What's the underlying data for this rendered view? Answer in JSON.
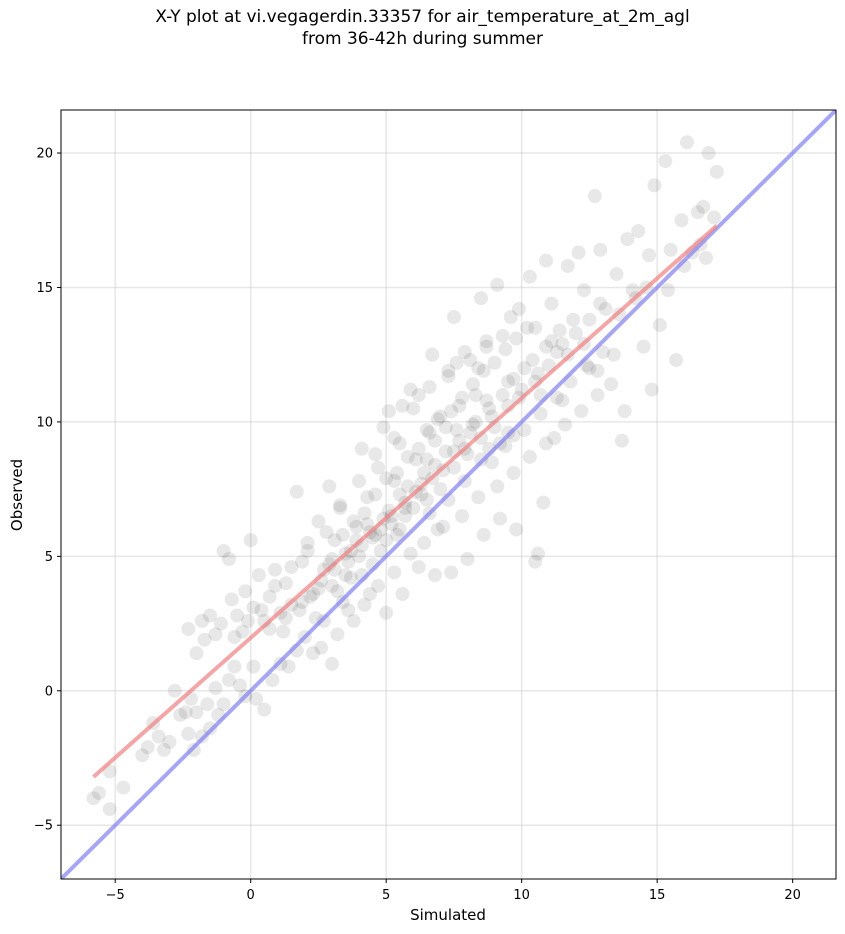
{
  "title_line1": "X-Y plot at vi.vegagerdin.33357 for air_temperature_at_2m_agl",
  "title_line2": "from 36-42h during summer",
  "chart_data": {
    "type": "scatter",
    "xlabel": "Simulated",
    "ylabel": "Observed",
    "xlim": [
      -7,
      21.6
    ],
    "ylim": [
      -7,
      21.6
    ],
    "xticks": [
      -5,
      0,
      5,
      10,
      15,
      20
    ],
    "yticks": [
      -5,
      0,
      5,
      10,
      15,
      20
    ],
    "xtick_labels": [
      "−5",
      "0",
      "5",
      "10",
      "15",
      "20"
    ],
    "ytick_labels": [
      "−5",
      "0",
      "5",
      "10",
      "15",
      "20"
    ],
    "grid": true,
    "point_color": "#000000",
    "point_alpha": 0.09,
    "regression_line": {
      "color": "#f08080",
      "x": [
        -5.8,
        17.2
      ],
      "y": [
        -3.2,
        17.3
      ]
    },
    "identity_line": {
      "color": "#8080f0",
      "x": [
        -7,
        21.6
      ],
      "y": [
        -7,
        21.6
      ]
    },
    "points": [
      [
        -5.8,
        -4.0
      ],
      [
        -5.2,
        -4.4
      ],
      [
        -5.6,
        -3.8
      ],
      [
        -5.2,
        -3.0
      ],
      [
        -4.7,
        -3.6
      ],
      [
        -4.0,
        -2.4
      ],
      [
        -3.8,
        -2.1
      ],
      [
        -3.6,
        -1.2
      ],
      [
        -3.4,
        -1.7
      ],
      [
        -3.2,
        -2.2
      ],
      [
        -3.0,
        -1.9
      ],
      [
        -2.8,
        0.0
      ],
      [
        -2.6,
        -0.9
      ],
      [
        -2.4,
        -0.8
      ],
      [
        -2.3,
        -1.6
      ],
      [
        -2.2,
        -0.3
      ],
      [
        -2.1,
        -2.2
      ],
      [
        -2.0,
        -0.8
      ],
      [
        -1.8,
        -1.7
      ],
      [
        -1.6,
        -0.5
      ],
      [
        -1.5,
        -1.4
      ],
      [
        -1.3,
        0.1
      ],
      [
        -1.2,
        -0.9
      ],
      [
        -1.0,
        -0.5
      ],
      [
        -0.8,
        0.4
      ],
      [
        -0.6,
        0.9
      ],
      [
        -0.4,
        0.2
      ],
      [
        -0.2,
        -0.2
      ],
      [
        0.1,
        0.9
      ],
      [
        0.2,
        -0.3
      ],
      [
        0.5,
        -0.7
      ],
      [
        0.8,
        0.4
      ],
      [
        1.1,
        1.0
      ],
      [
        -2.3,
        2.3
      ],
      [
        -2.0,
        1.4
      ],
      [
        -1.8,
        2.6
      ],
      [
        -1.7,
        1.9
      ],
      [
        -1.5,
        2.8
      ],
      [
        -1.3,
        2.1
      ],
      [
        -1.1,
        2.5
      ],
      [
        -1.0,
        5.2
      ],
      [
        -0.8,
        4.9
      ],
      [
        -0.7,
        3.4
      ],
      [
        -0.5,
        2.8
      ],
      [
        -0.3,
        2.2
      ],
      [
        -0.2,
        3.7
      ],
      [
        0.0,
        5.6
      ],
      [
        0.1,
        3.1
      ],
      [
        0.3,
        4.3
      ],
      [
        0.5,
        2.6
      ],
      [
        0.7,
        3.5
      ],
      [
        0.9,
        4.5
      ],
      [
        1.1,
        2.9
      ],
      [
        1.3,
        4.0
      ],
      [
        1.5,
        3.2
      ],
      [
        1.7,
        7.4
      ],
      [
        1.9,
        4.8
      ],
      [
        2.1,
        5.5
      ],
      [
        2.3,
        3.6
      ],
      [
        2.5,
        6.3
      ],
      [
        2.7,
        4.5
      ],
      [
        2.9,
        7.6
      ],
      [
        3.1,
        5.6
      ],
      [
        3.3,
        6.8
      ],
      [
        3.5,
        5.1
      ],
      [
        3.7,
        4.2
      ],
      [
        3.9,
        6.1
      ],
      [
        4.1,
        9.0
      ],
      [
        4.3,
        7.2
      ],
      [
        4.5,
        5.7
      ],
      [
        4.7,
        8.3
      ],
      [
        4.9,
        6.4
      ],
      [
        5.1,
        10.4
      ],
      [
        5.3,
        7.8
      ],
      [
        5.5,
        9.2
      ],
      [
        5.7,
        6.8
      ],
      [
        5.9,
        11.2
      ],
      [
        6.1,
        8.6
      ],
      [
        6.3,
        7.3
      ],
      [
        6.5,
        9.7
      ],
      [
        6.7,
        12.5
      ],
      [
        6.9,
        10.1
      ],
      [
        7.1,
        8.2
      ],
      [
        7.3,
        11.7
      ],
      [
        7.5,
        13.9
      ],
      [
        7.7,
        10.6
      ],
      [
        7.9,
        9.0
      ],
      [
        8.1,
        12.3
      ],
      [
        8.3,
        11.0
      ],
      [
        8.5,
        14.6
      ],
      [
        8.7,
        12.8
      ],
      [
        8.9,
        10.2
      ],
      [
        9.1,
        15.1
      ],
      [
        9.3,
        13.2
      ],
      [
        9.5,
        11.5
      ],
      [
        9.7,
        9.5
      ],
      [
        9.9,
        14.2
      ],
      [
        10.1,
        12.0
      ],
      [
        10.3,
        15.4
      ],
      [
        10.5,
        13.5
      ],
      [
        10.7,
        11.0
      ],
      [
        10.9,
        16.0
      ],
      [
        11.1,
        14.4
      ],
      [
        11.3,
        12.6
      ],
      [
        11.5,
        10.8
      ],
      [
        11.7,
        15.8
      ],
      [
        11.9,
        13.8
      ],
      [
        12.1,
        16.3
      ],
      [
        12.3,
        14.9
      ],
      [
        12.5,
        12.0
      ],
      [
        12.7,
        18.4
      ],
      [
        12.9,
        16.4
      ],
      [
        13.1,
        14.2
      ],
      [
        13.3,
        11.4
      ],
      [
        13.5,
        15.5
      ],
      [
        13.7,
        9.3
      ],
      [
        13.9,
        16.8
      ],
      [
        14.1,
        14.9
      ],
      [
        14.3,
        17.1
      ],
      [
        14.5,
        12.8
      ],
      [
        14.7,
        16.2
      ],
      [
        14.9,
        18.8
      ],
      [
        15.1,
        13.6
      ],
      [
        15.3,
        19.7
      ],
      [
        15.5,
        16.4
      ],
      [
        15.7,
        12.3
      ],
      [
        15.9,
        17.5
      ],
      [
        16.1,
        20.4
      ],
      [
        16.3,
        16.3
      ],
      [
        16.5,
        17.8
      ],
      [
        16.7,
        18.0
      ],
      [
        16.9,
        20.0
      ],
      [
        17.1,
        17.6
      ],
      [
        17.2,
        19.3
      ],
      [
        16.8,
        16.1
      ],
      [
        14.8,
        11.2
      ],
      [
        13.8,
        10.4
      ],
      [
        12.8,
        11.0
      ],
      [
        11.2,
        9.4
      ],
      [
        10.8,
        7.0
      ],
      [
        10.5,
        4.8
      ],
      [
        10.6,
        5.1
      ],
      [
        9.8,
        6.0
      ],
      [
        9.2,
        6.4
      ],
      [
        8.6,
        5.8
      ],
      [
        8.0,
        4.9
      ],
      [
        7.4,
        4.4
      ],
      [
        6.8,
        4.3
      ],
      [
        6.2,
        4.6
      ],
      [
        5.6,
        3.6
      ],
      [
        5.0,
        2.9
      ],
      [
        4.4,
        3.6
      ],
      [
        3.8,
        2.6
      ],
      [
        3.2,
        2.1
      ],
      [
        2.6,
        1.6
      ],
      [
        2.0,
        2.0
      ],
      [
        1.4,
        0.9
      ],
      [
        3.0,
        1.0
      ],
      [
        2.3,
        1.4
      ],
      [
        1.7,
        1.5
      ],
      [
        3.5,
        4.3
      ],
      [
        4.0,
        5.0
      ],
      [
        4.5,
        4.7
      ],
      [
        5.0,
        5.6
      ],
      [
        5.5,
        6.0
      ],
      [
        6.0,
        6.8
      ],
      [
        6.5,
        7.1
      ],
      [
        7.0,
        7.5
      ],
      [
        7.5,
        8.3
      ],
      [
        8.0,
        8.8
      ],
      [
        8.5,
        9.4
      ],
      [
        9.0,
        9.8
      ],
      [
        9.5,
        10.6
      ],
      [
        10.0,
        11.2
      ],
      [
        10.5,
        11.5
      ],
      [
        11.0,
        12.1
      ],
      [
        11.5,
        12.9
      ],
      [
        12.0,
        13.3
      ],
      [
        12.5,
        13.8
      ],
      [
        3.0,
        4.9
      ],
      [
        3.4,
        5.8
      ],
      [
        3.8,
        6.3
      ],
      [
        4.2,
        6.6
      ],
      [
        4.6,
        7.3
      ],
      [
        5.0,
        7.9
      ],
      [
        5.4,
        8.1
      ],
      [
        5.8,
        8.7
      ],
      [
        6.2,
        9.0
      ],
      [
        6.6,
        9.6
      ],
      [
        7.0,
        10.2
      ],
      [
        7.4,
        10.4
      ],
      [
        7.8,
        10.9
      ],
      [
        8.2,
        11.4
      ],
      [
        8.6,
        11.9
      ],
      [
        9.0,
        12.2
      ],
      [
        9.4,
        12.7
      ],
      [
        9.8,
        13.1
      ],
      [
        10.2,
        13.5
      ],
      [
        2.2,
        3.5
      ],
      [
        2.6,
        4.1
      ],
      [
        3.0,
        3.9
      ],
      [
        3.6,
        4.8
      ],
      [
        4.1,
        5.4
      ],
      [
        4.8,
        6.0
      ],
      [
        5.2,
        6.5
      ],
      [
        5.7,
        7.0
      ],
      [
        6.3,
        7.7
      ],
      [
        6.8,
        8.4
      ],
      [
        7.2,
        8.9
      ],
      [
        7.7,
        9.3
      ],
      [
        8.3,
        10.0
      ],
      [
        8.8,
        10.5
      ],
      [
        9.3,
        11.0
      ],
      [
        9.7,
        11.6
      ],
      [
        10.4,
        12.3
      ],
      [
        10.9,
        12.8
      ],
      [
        11.4,
        13.4
      ],
      [
        5.3,
        9.4
      ],
      [
        6.0,
        10.5
      ],
      [
        6.6,
        11.3
      ],
      [
        7.3,
        11.9
      ],
      [
        7.9,
        12.6
      ],
      [
        8.7,
        13.0
      ],
      [
        9.6,
        13.9
      ],
      [
        4.6,
        8.8
      ],
      [
        4.0,
        7.8
      ],
      [
        3.3,
        6.9
      ],
      [
        2.8,
        5.9
      ],
      [
        2.1,
        5.2
      ],
      [
        1.5,
        4.6
      ],
      [
        0.9,
        3.9
      ],
      [
        0.4,
        3.0
      ],
      [
        -0.1,
        2.6
      ],
      [
        -0.6,
        2.0
      ],
      [
        1.2,
        2.2
      ],
      [
        1.8,
        3.0
      ],
      [
        2.4,
        2.7
      ],
      [
        6.4,
        5.5
      ],
      [
        7.1,
        6.1
      ],
      [
        7.8,
        6.5
      ],
      [
        8.4,
        7.2
      ],
      [
        9.1,
        7.6
      ],
      [
        9.7,
        8.1
      ],
      [
        10.3,
        8.7
      ],
      [
        10.9,
        9.2
      ],
      [
        11.6,
        9.9
      ],
      [
        12.2,
        10.4
      ],
      [
        12.8,
        11.9
      ],
      [
        13.4,
        12.5
      ],
      [
        6.9,
        6.0
      ],
      [
        5.9,
        5.1
      ],
      [
        5.3,
        4.4
      ],
      [
        4.7,
        3.9
      ],
      [
        4.2,
        3.2
      ],
      [
        3.6,
        3.0
      ],
      [
        8.9,
        8.5
      ],
      [
        9.4,
        9.1
      ],
      [
        10.1,
        9.7
      ],
      [
        10.7,
        10.3
      ],
      [
        11.3,
        10.9
      ],
      [
        11.8,
        11.5
      ],
      [
        12.4,
        12.1
      ],
      [
        13.0,
        12.6
      ],
      [
        4.9,
        9.8
      ],
      [
        5.6,
        10.6
      ],
      [
        6.2,
        11.0
      ],
      [
        7.6,
        12.2
      ],
      [
        8.4,
        12.0
      ],
      [
        7.2,
        9.8
      ],
      [
        6.5,
        8.6
      ],
      [
        5.8,
        7.6
      ],
      [
        5.1,
        6.7
      ],
      [
        4.4,
        5.9
      ],
      [
        3.7,
        5.2
      ],
      [
        3.1,
        4.5
      ],
      [
        2.5,
        3.8
      ],
      [
        1.9,
        3.3
      ],
      [
        1.3,
        2.7
      ],
      [
        0.7,
        2.3
      ],
      [
        6.7,
        7.9
      ],
      [
        7.3,
        7.1
      ],
      [
        7.9,
        7.8
      ],
      [
        8.5,
        8.6
      ],
      [
        9.2,
        9.2
      ],
      [
        5.5,
        7.3
      ],
      [
        6.1,
        7.4
      ],
      [
        4.3,
        6.2
      ],
      [
        3.9,
        5.6
      ],
      [
        5.2,
        6.2
      ],
      [
        6.6,
        6.6
      ],
      [
        8.1,
        9.6
      ],
      [
        8.7,
        10.8
      ],
      [
        9.9,
        10.9
      ],
      [
        10.6,
        11.8
      ],
      [
        11.1,
        13.0
      ],
      [
        11.7,
        12.5
      ],
      [
        12.3,
        12.9
      ],
      [
        12.9,
        14.4
      ],
      [
        13.6,
        14.0
      ],
      [
        14.2,
        14.6
      ],
      [
        14.6,
        15.0
      ],
      [
        15.4,
        14.9
      ],
      [
        16.0,
        15.8
      ],
      [
        16.6,
        16.6
      ],
      [
        7.5,
        8.9
      ],
      [
        8.2,
        9.9
      ],
      [
        6.4,
        8.1
      ],
      [
        5.7,
        6.5
      ],
      [
        4.8,
        5.2
      ],
      [
        4.1,
        4.3
      ],
      [
        3.4,
        3.3
      ],
      [
        2.7,
        2.6
      ],
      [
        3.2,
        3.7
      ],
      [
        2.9,
        4.7
      ],
      [
        4.6,
        5.8
      ],
      [
        5.4,
        5.8
      ],
      [
        6.8,
        9.3
      ],
      [
        7.6,
        9.7
      ],
      [
        8.8,
        9.0
      ],
      [
        9.5,
        9.6
      ]
    ]
  }
}
